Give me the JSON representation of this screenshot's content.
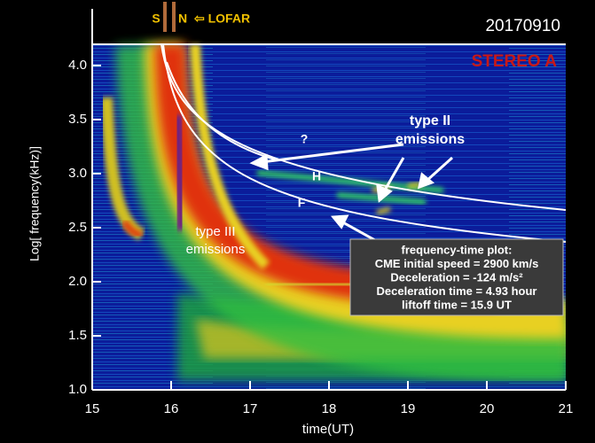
{
  "chart_data": {
    "type": "spectrogram",
    "title": "20170910",
    "subtitle": "STEREO A",
    "x_label": "time(UT)",
    "y_label": "Log[ frequency(kHz)]",
    "xlim": [
      15,
      21
    ],
    "xticks": [
      15,
      16,
      17,
      18,
      19,
      20,
      21
    ],
    "ylim": [
      1,
      4.45
    ],
    "yticks": [
      {
        "value": 1,
        "label": "1.0"
      },
      1.5,
      {
        "value": 2,
        "label": "2.0"
      },
      2.5,
      {
        "value": 3,
        "label": "3.0"
      },
      3.5,
      {
        "value": 4,
        "label": "4.0"
      }
    ],
    "annotations": {
      "south": "S",
      "north": "N",
      "lofar": "⇦ LOFAR",
      "type_ii": [
        "type II",
        "emissions"
      ],
      "question": "?",
      "harmonic": "H",
      "fundamental": "F",
      "type_iii": [
        "type III",
        "emissions"
      ],
      "fit_box": [
        "frequency-time plot:",
        "CME initial speed = 2900 km/s",
        "Deceleration = -124 m/s²",
        "Deceleration time = 4.93 hour",
        "liftoff time = 15.9 UT"
      ]
    }
  }
}
